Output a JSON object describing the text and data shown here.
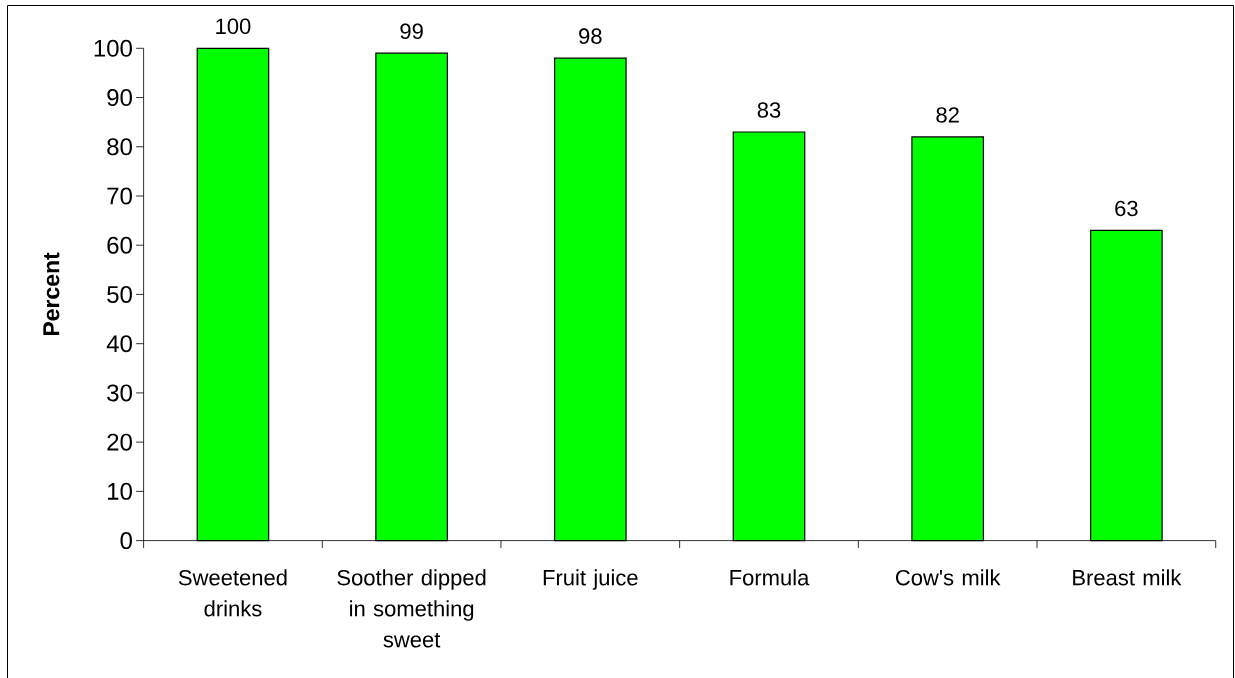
{
  "chart_data": {
    "type": "bar",
    "categories": [
      "Sweetened drinks",
      "Soother dipped in something sweet",
      "Fruit juice",
      "Formula",
      "Cow's milk",
      "Breast milk"
    ],
    "values": [
      100,
      99,
      98,
      83,
      82,
      63
    ],
    "color": "#00ff00",
    "ylabel": "Percent",
    "ylim": [
      0,
      100
    ],
    "yticks": [
      0,
      10,
      20,
      30,
      40,
      50,
      60,
      70,
      80,
      90,
      100
    ],
    "data_labels": true
  }
}
